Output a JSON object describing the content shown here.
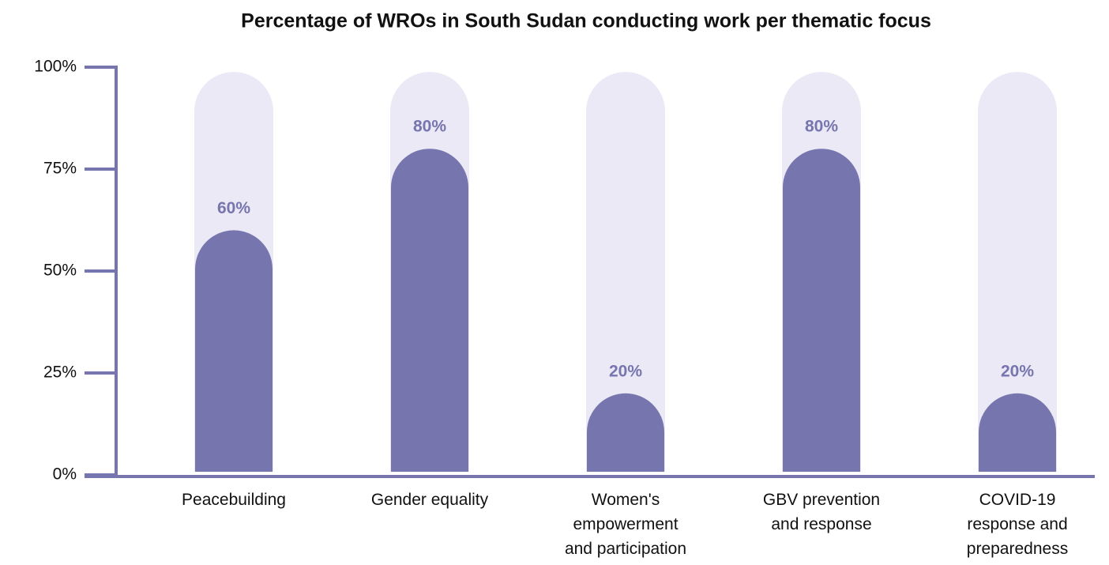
{
  "chart_data": {
    "type": "bar",
    "title": "Percentage of WROs in South Sudan conducting work per thematic focus",
    "categories": [
      "Peacebuilding",
      "Gender equality",
      "Women's\nempowerment\nand participation",
      "GBV prevention\nand response",
      "COVID-19\nresponse and\npreparedness"
    ],
    "values": [
      60,
      80,
      20,
      80,
      20
    ],
    "value_labels": [
      "60%",
      "80%",
      "20%",
      "80%",
      "20%"
    ],
    "color": "#7775ae",
    "track_color": "#ebe9f6",
    "ylim": [
      0,
      100
    ],
    "yticks": [
      {
        "value": 0,
        "label": "0%"
      },
      {
        "value": 25,
        "label": "25%"
      },
      {
        "value": 50,
        "label": "50%"
      },
      {
        "value": 75,
        "label": "75%"
      },
      {
        "value": 100,
        "label": "100%"
      }
    ]
  }
}
